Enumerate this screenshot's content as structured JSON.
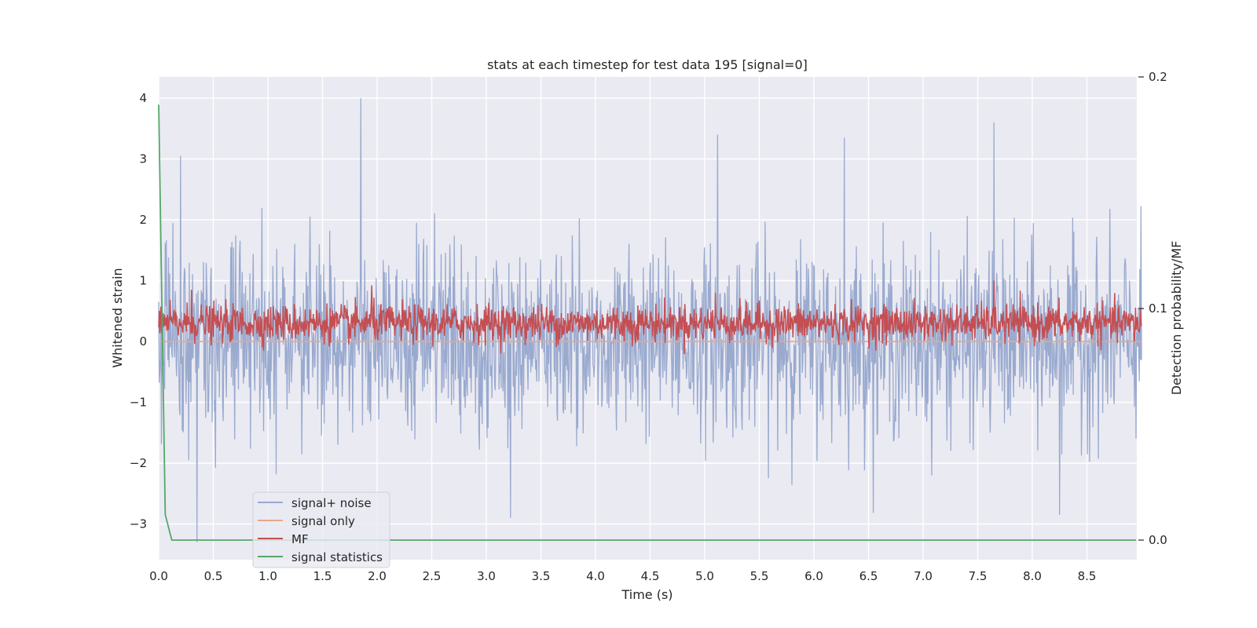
{
  "chart_data": {
    "type": "line",
    "title": "stats at each timestep for test data 195 [signal=0]",
    "xlabel": "Time (s)",
    "ylabel_left": "Whitened strain",
    "ylabel_right": "Detection probability/MF",
    "xlim": [
      0.0,
      9.0
    ],
    "ylim_left": [
      -3.6,
      4.35
    ],
    "ylim_right": [
      -0.009,
      0.2
    ],
    "x_ticks": [
      "0.0",
      "0.5",
      "1.0",
      "1.5",
      "2.0",
      "2.5",
      "3.0",
      "3.5",
      "4.0",
      "4.5",
      "5.0",
      "5.5",
      "6.0",
      "6.5",
      "7.0",
      "7.5",
      "8.0",
      "8.5"
    ],
    "y_ticks_left": [
      "−3",
      "−2",
      "−1",
      "0",
      "1",
      "2",
      "3",
      "4"
    ],
    "y_ticks_right": [
      "0.0",
      "0.1",
      "0.2"
    ],
    "grid": true,
    "legend_position": "lower-left",
    "series": [
      {
        "name": "signal+ noise",
        "color": "#9aaacf",
        "axis": "left",
        "description": "whitened strain noise, approx. range -3.3 to 4.0",
        "envelope": {
          "lower": -1.5,
          "upper": 1.5,
          "x_end": 9.0
        },
        "peaks": [
          {
            "x": 1.85,
            "y": 4.0
          },
          {
            "x": 7.65,
            "y": 3.6
          },
          {
            "x": 5.12,
            "y": 3.4
          },
          {
            "x": 6.28,
            "y": 3.35
          },
          {
            "x": 0.2,
            "y": 3.05
          },
          {
            "x": 0.35,
            "y": -3.3
          },
          {
            "x": 3.22,
            "y": -2.9
          },
          {
            "x": 8.25,
            "y": -2.85
          }
        ]
      },
      {
        "name": "signal only",
        "color": "#e8a68a",
        "axis": "left",
        "x": [
          0.0,
          9.0
        ],
        "y": [
          0.0,
          0.0
        ]
      },
      {
        "name": "MF",
        "color": "#c44e52",
        "axis": "left",
        "description": "matched filter output, approx. range 0.0 to 1.0",
        "envelope": {
          "lower": 0.05,
          "upper": 0.6,
          "x_end": 9.0
        },
        "peaks": [
          {
            "x": 7.65,
            "y": 1.0
          },
          {
            "x": 1.95,
            "y": 0.92
          },
          {
            "x": 0.3,
            "y": 0.85
          },
          {
            "x": 5.1,
            "y": 0.8
          }
        ]
      },
      {
        "name": "signal statistics",
        "color": "#55a868",
        "axis": "right",
        "x": [
          0.0,
          0.06,
          0.12,
          8.95
        ],
        "y": [
          0.188,
          0.011,
          0.0,
          0.0
        ]
      }
    ]
  }
}
